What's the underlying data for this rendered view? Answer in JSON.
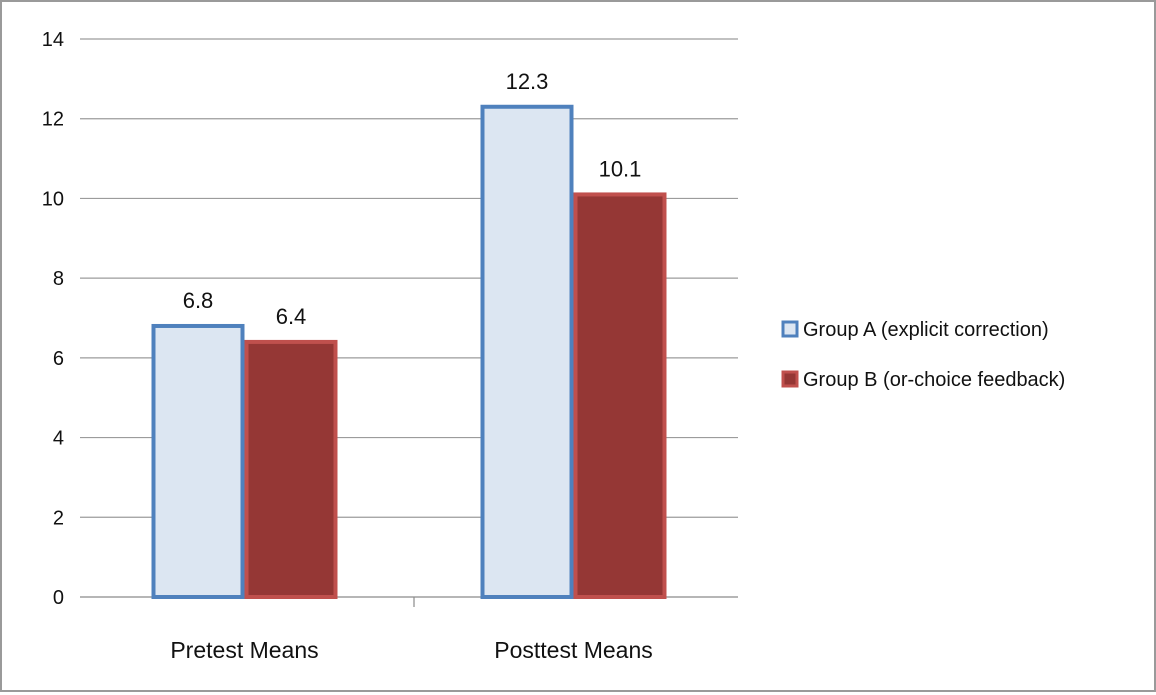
{
  "chart_data": {
    "type": "bar",
    "title": "",
    "xlabel": "",
    "ylabel": "",
    "categories": [
      "Pretest Means",
      "Posttest Means"
    ],
    "series": [
      {
        "name": "Group A (explicit correction)",
        "values": [
          6.8,
          12.3
        ],
        "labels": [
          "6.8",
          "12.3"
        ],
        "fill": "#dce6f2",
        "stroke": "#4f81bd"
      },
      {
        "name": "Group B (or-choice feedback)",
        "values": [
          6.4,
          10.1
        ],
        "labels": [
          "6.4",
          "10.1"
        ],
        "fill": "#953735",
        "stroke": "#c0504d"
      }
    ],
    "ylim": [
      0,
      14
    ],
    "yticks": [
      0,
      2,
      4,
      6,
      8,
      10,
      12,
      14
    ],
    "grid": true,
    "legend_position": "right"
  }
}
